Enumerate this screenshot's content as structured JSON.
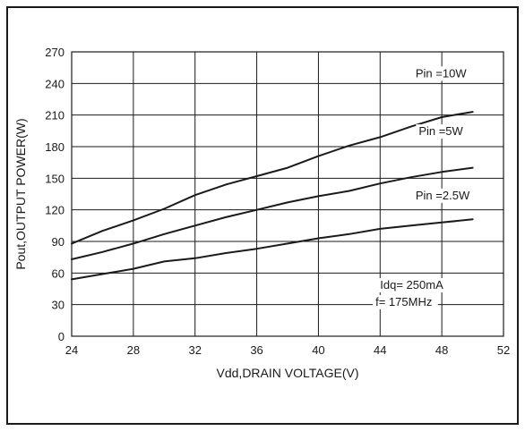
{
  "chart_data": {
    "type": "line",
    "xlabel": "Vdd,DRAIN VOLTAGE(V)",
    "ylabel": "Pout,OUTPUT POWER(W)",
    "xlim": [
      24,
      52
    ],
    "ylim": [
      0,
      270
    ],
    "x_ticks": [
      24,
      28,
      32,
      36,
      40,
      44,
      48,
      52
    ],
    "y_ticks": [
      0,
      30,
      60,
      90,
      120,
      150,
      180,
      210,
      240,
      270
    ],
    "grid": true,
    "series": [
      {
        "name": "Pin =10W",
        "x": [
          24,
          26,
          28,
          30,
          32,
          34,
          36,
          38,
          40,
          42,
          44,
          46,
          48,
          50
        ],
        "y": [
          88,
          100,
          110,
          121,
          134,
          144,
          152,
          160,
          171,
          181,
          189,
          199,
          208,
          213
        ]
      },
      {
        "name": "Pin =5W",
        "x": [
          24,
          26,
          28,
          30,
          32,
          34,
          36,
          38,
          40,
          42,
          44,
          46,
          48,
          50
        ],
        "y": [
          73,
          80,
          88,
          97,
          105,
          113,
          120,
          127,
          133,
          138,
          145,
          151,
          156,
          160
        ]
      },
      {
        "name": "Pin =2.5W",
        "x": [
          24,
          26,
          28,
          30,
          32,
          34,
          36,
          38,
          40,
          42,
          44,
          46,
          48,
          50
        ],
        "y": [
          54,
          59,
          64,
          71,
          74,
          79,
          83,
          88,
          93,
          97,
          102,
          105,
          108,
          111
        ]
      }
    ],
    "annotations": [
      "Idq= 250mA",
      "f= 175MHz"
    ]
  }
}
